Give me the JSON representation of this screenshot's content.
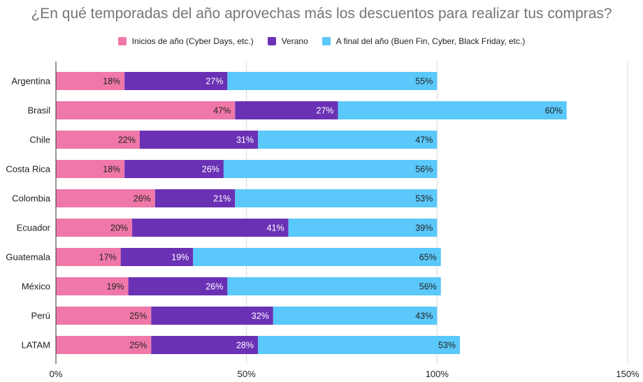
{
  "chart_data": {
    "type": "bar",
    "orientation": "horizontal",
    "stacked": true,
    "title": "¿En qué temporadas del año aprovechas más los descuentos para realizar tus compras?",
    "categories": [
      "Argentina",
      "Brasil",
      "Chile",
      "Costa Rica",
      "Colombia",
      "Ecuador",
      "Guatemala",
      "México",
      "Perú",
      "LATAM"
    ],
    "series": [
      {
        "name": "Inicios de año (Cyber Days, etc.)",
        "color": "#F078A8",
        "label_color": "#222222",
        "values": [
          18,
          47,
          22,
          18,
          26,
          20,
          17,
          19,
          25,
          25
        ]
      },
      {
        "name": "Verano",
        "color": "#6A31B5",
        "label_color": "#ffffff",
        "values": [
          27,
          27,
          31,
          26,
          21,
          41,
          19,
          26,
          32,
          28
        ]
      },
      {
        "name": "A final del año (Buen Fin, Cyber, Black Friday, etc.)",
        "color": "#5AC8FA",
        "label_color": "#222222",
        "values": [
          55,
          60,
          47,
          56,
          53,
          39,
          65,
          56,
          43,
          53
        ]
      }
    ],
    "value_suffix": "%",
    "xlim": [
      0,
      150
    ],
    "xticks": [
      0,
      50,
      100,
      150
    ],
    "xtick_labels": [
      "0%",
      "50%",
      "100%",
      "150%"
    ],
    "grid": true,
    "legend_position": "top-center"
  }
}
